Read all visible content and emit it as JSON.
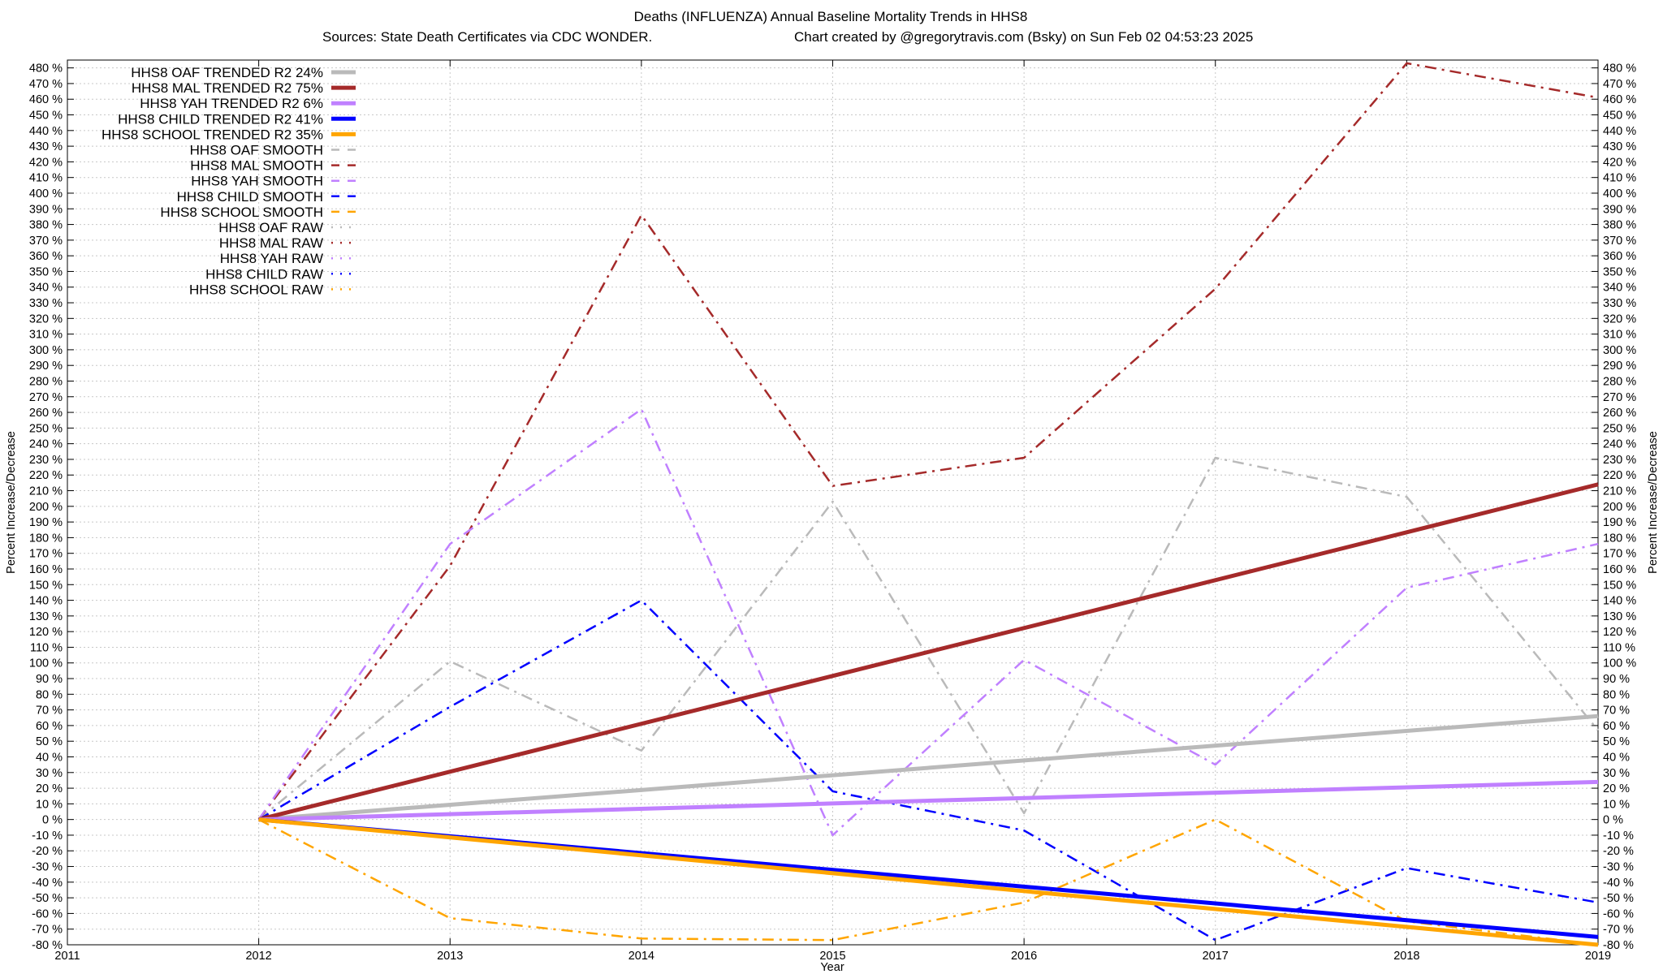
{
  "chart_data": {
    "type": "line",
    "title": "Deaths (INFLUENZA)  Annual Baseline Mortality Trends in HHS8",
    "subtitle_left": "Sources: State Death Certificates via CDC WONDER.",
    "subtitle_right": "Chart created by @gregorytravis.com (Bsky) on Sun Feb 02 04:53:23 2025",
    "xlabel": "Year",
    "ylabel": "Percent Increase/Decrease",
    "y2label": "Percent Increase/Decrease",
    "xlim": [
      2011,
      2019
    ],
    "ylim": [
      -80,
      485
    ],
    "x_ticks": [
      2011,
      2012,
      2013,
      2014,
      2015,
      2016,
      2017,
      2018,
      2019
    ],
    "y_tick_step": 10,
    "y_tick_suffix": " %",
    "grid": true,
    "legend_position": "top-left",
    "series": [
      {
        "name": "HHS8 OAF TRENDED R2  24%",
        "style": "solid",
        "width": 5,
        "color": "#bababa",
        "x": [
          2012,
          2019
        ],
        "y": [
          0,
          66
        ]
      },
      {
        "name": "HHS8 MAL TRENDED R2  75%",
        "style": "solid",
        "width": 5,
        "color": "#a52a2a",
        "x": [
          2012,
          2019
        ],
        "y": [
          0,
          214
        ]
      },
      {
        "name": "HHS8 YAH TRENDED R2   6%",
        "style": "solid",
        "width": 5,
        "color": "#c080ff",
        "x": [
          2012,
          2019
        ],
        "y": [
          0,
          24
        ]
      },
      {
        "name": "HHS8 CHILD TRENDED R2  41%",
        "style": "solid",
        "width": 5,
        "color": "#0000ff",
        "x": [
          2012,
          2019
        ],
        "y": [
          0,
          -75
        ]
      },
      {
        "name": "HHS8 SCHOOL TRENDED R2  35%",
        "style": "solid",
        "width": 5,
        "color": "#ffa500",
        "x": [
          2012,
          2019
        ],
        "y": [
          0,
          -80
        ]
      },
      {
        "name": "HHS8 OAF SMOOTH",
        "style": "dashdot",
        "width": 2.5,
        "color": "#bababa",
        "x": [
          2012,
          2013,
          2014,
          2015,
          2016,
          2017,
          2018,
          2019
        ],
        "y": [
          0,
          101,
          44,
          203,
          4,
          231,
          206,
          57
        ]
      },
      {
        "name": "HHS8 MAL SMOOTH",
        "style": "dashdot",
        "width": 2.5,
        "color": "#a52a2a",
        "x": [
          2012,
          2013,
          2014,
          2015,
          2016,
          2017,
          2018,
          2019
        ],
        "y": [
          0,
          162,
          386,
          213,
          231,
          339,
          483,
          461
        ]
      },
      {
        "name": "HHS8 YAH SMOOTH",
        "style": "dashdot",
        "width": 2.5,
        "color": "#c080ff",
        "x": [
          2012,
          2013,
          2014,
          2015,
          2016,
          2017,
          2018,
          2019
        ],
        "y": [
          0,
          176,
          262,
          -10,
          102,
          35,
          148,
          176
        ]
      },
      {
        "name": "HHS8 CHILD SMOOTH",
        "style": "dashdot",
        "width": 2.5,
        "color": "#0000ff",
        "x": [
          2012,
          2013,
          2014,
          2015,
          2016,
          2017,
          2018,
          2019
        ],
        "y": [
          0,
          72,
          140,
          18,
          -7,
          -77,
          -31,
          -53
        ]
      },
      {
        "name": "HHS8 SCHOOL SMOOTH",
        "style": "dashdot",
        "width": 2.5,
        "color": "#ffa500",
        "x": [
          2012,
          2013,
          2014,
          2015,
          2016,
          2017,
          2018,
          2019
        ],
        "y": [
          0,
          -63,
          -76,
          -77,
          -53,
          0,
          -65,
          -80
        ]
      },
      {
        "name": "HHS8 OAF RAW",
        "style": "dotted",
        "width": 2.5,
        "color": "#bababa",
        "x": [],
        "y": []
      },
      {
        "name": "HHS8 MAL RAW",
        "style": "dotted",
        "width": 2.5,
        "color": "#a52a2a",
        "x": [],
        "y": []
      },
      {
        "name": "HHS8 YAH RAW",
        "style": "dotted",
        "width": 2.5,
        "color": "#c080ff",
        "x": [],
        "y": []
      },
      {
        "name": "HHS8 CHILD RAW",
        "style": "dotted",
        "width": 2.5,
        "color": "#0000ff",
        "x": [],
        "y": []
      },
      {
        "name": "HHS8 SCHOOL RAW",
        "style": "dotted",
        "width": 2.5,
        "color": "#ffa500",
        "x": [],
        "y": []
      }
    ]
  }
}
